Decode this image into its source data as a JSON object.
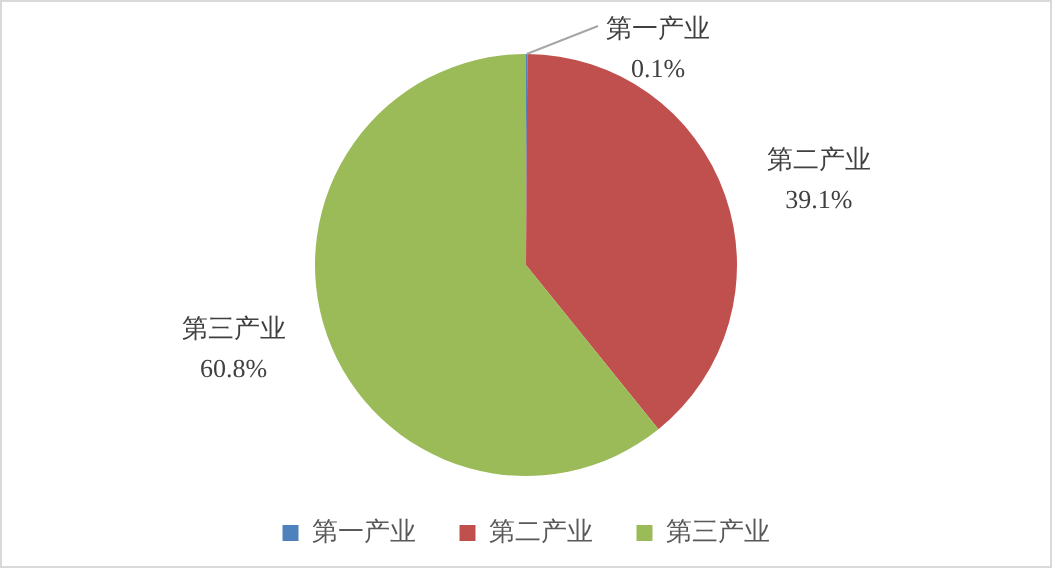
{
  "chart_data": {
    "type": "pie",
    "categories": [
      "第一产业",
      "第二产业",
      "第三产业"
    ],
    "values": [
      0.1,
      39.1,
      60.8
    ],
    "value_labels": [
      "0.1%",
      "39.1%",
      "60.8%"
    ],
    "colors": [
      "#4f81bd",
      "#c0504d",
      "#9bbb59"
    ],
    "legend": "bottom"
  }
}
